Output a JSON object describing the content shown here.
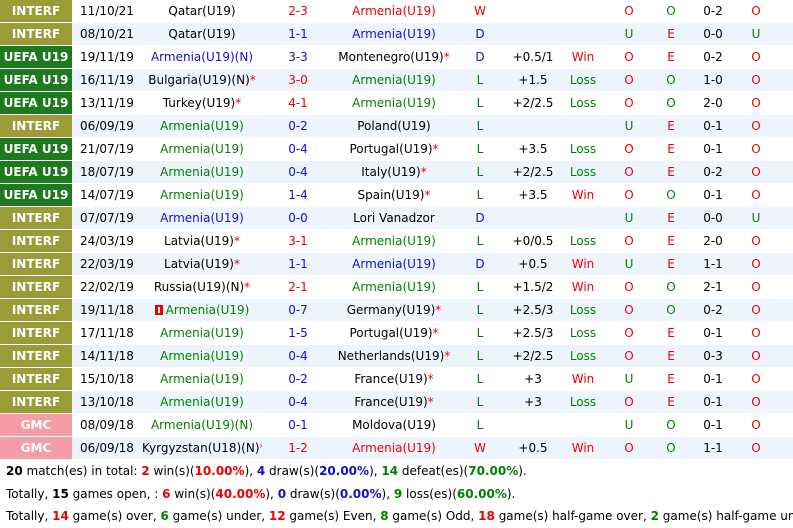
{
  "colors": {
    "interf": "#9b9b37",
    "uefa": "#1e7a1e",
    "gmc": "#f59ca6",
    "row_a": "#eef4fc",
    "row_b": "#ffffff",
    "win": "#e00000",
    "draw": "#1010d0",
    "loss": "#008000"
  },
  "matches": [
    {
      "league": "INTERF",
      "date": "11/10/21",
      "home": "Qatar(U19)",
      "home_color": "black",
      "home_flag": "",
      "score": "2-3",
      "score_color": "red",
      "away": "Armenia(U19)",
      "away_color": "red",
      "result": "W",
      "result_color": "red",
      "handicap": "",
      "hres": "",
      "hres_color": "",
      "c1": "O",
      "c1_color": "red",
      "c2": "O",
      "c2_color": "green",
      "ht": "0-2",
      "c3": "O",
      "c3_color": "red"
    },
    {
      "league": "INTERF",
      "date": "08/10/21",
      "home": "Qatar(U19)",
      "home_color": "black",
      "home_flag": "",
      "score": "1-1",
      "score_color": "blue",
      "away": "Armenia(U19)",
      "away_color": "blue",
      "result": "D",
      "result_color": "blue",
      "handicap": "",
      "hres": "",
      "hres_color": "",
      "c1": "U",
      "c1_color": "green",
      "c2": "E",
      "c2_color": "red",
      "ht": "0-0",
      "c3": "U",
      "c3_color": "green"
    },
    {
      "league": "UEFA U19",
      "date": "19/11/19",
      "home": "Armenia(U19)(N)",
      "home_color": "blue",
      "home_flag": "",
      "score": "3-3",
      "score_color": "blue",
      "away": "Montenegro(U19)",
      "away_color": "black",
      "away_ast": "*",
      "result": "D",
      "result_color": "blue",
      "handicap": "+0.5/1",
      "hres": "Win",
      "hres_color": "red",
      "c1": "O",
      "c1_color": "red",
      "c2": "E",
      "c2_color": "red",
      "ht": "0-2",
      "c3": "O",
      "c3_color": "red"
    },
    {
      "league": "UEFA U19",
      "date": "16/11/19",
      "home": "Bulgaria(U19)(N)",
      "home_color": "black",
      "home_ast": "*",
      "home_flag": "",
      "score": "3-0",
      "score_color": "red",
      "away": "Armenia(U19)",
      "away_color": "green",
      "result": "L",
      "result_color": "green",
      "handicap": "+1.5",
      "hres": "Loss",
      "hres_color": "green",
      "c1": "O",
      "c1_color": "red",
      "c2": "O",
      "c2_color": "green",
      "ht": "1-0",
      "c3": "O",
      "c3_color": "red"
    },
    {
      "league": "UEFA U19",
      "date": "13/11/19",
      "home": "Turkey(U19)",
      "home_color": "black",
      "home_ast": "*",
      "home_flag": "",
      "score": "4-1",
      "score_color": "red",
      "away": "Armenia(U19)",
      "away_color": "green",
      "result": "L",
      "result_color": "green",
      "handicap": "+2/2.5",
      "hres": "Loss",
      "hres_color": "green",
      "c1": "O",
      "c1_color": "red",
      "c2": "O",
      "c2_color": "green",
      "ht": "2-0",
      "c3": "O",
      "c3_color": "red"
    },
    {
      "league": "INTERF",
      "date": "06/09/19",
      "home": "Armenia(U19)",
      "home_color": "green",
      "home_flag": "",
      "score": "0-2",
      "score_color": "blue",
      "away": "Poland(U19)",
      "away_color": "black",
      "result": "L",
      "result_color": "green",
      "handicap": "",
      "hres": "",
      "hres_color": "",
      "c1": "U",
      "c1_color": "green",
      "c2": "E",
      "c2_color": "red",
      "ht": "0-1",
      "c3": "O",
      "c3_color": "red"
    },
    {
      "league": "UEFA U19",
      "date": "21/07/19",
      "home": "Armenia(U19)",
      "home_color": "green",
      "home_flag": "",
      "score": "0-4",
      "score_color": "blue",
      "away": "Portugal(U19)",
      "away_color": "black",
      "away_ast": "*",
      "result": "L",
      "result_color": "green",
      "handicap": "+3.5",
      "hres": "Loss",
      "hres_color": "green",
      "c1": "O",
      "c1_color": "red",
      "c2": "E",
      "c2_color": "red",
      "ht": "0-1",
      "c3": "O",
      "c3_color": "red"
    },
    {
      "league": "UEFA U19",
      "date": "18/07/19",
      "home": "Armenia(U19)",
      "home_color": "green",
      "home_flag": "",
      "score": "0-4",
      "score_color": "blue",
      "away": "Italy(U19)",
      "away_color": "black",
      "away_ast": "*",
      "result": "L",
      "result_color": "green",
      "handicap": "+2/2.5",
      "hres": "Loss",
      "hres_color": "green",
      "c1": "O",
      "c1_color": "red",
      "c2": "E",
      "c2_color": "red",
      "ht": "0-2",
      "c3": "O",
      "c3_color": "red"
    },
    {
      "league": "UEFA U19",
      "date": "14/07/19",
      "home": "Armenia(U19)",
      "home_color": "green",
      "home_flag": "",
      "score": "1-4",
      "score_color": "blue",
      "away": "Spain(U19)",
      "away_color": "black",
      "away_ast": "*",
      "result": "L",
      "result_color": "green",
      "handicap": "+3.5",
      "hres": "Win",
      "hres_color": "red",
      "c1": "O",
      "c1_color": "red",
      "c2": "O",
      "c2_color": "green",
      "ht": "0-1",
      "c3": "O",
      "c3_color": "red"
    },
    {
      "league": "INTERF",
      "date": "07/07/19",
      "home": "Armenia(U19)",
      "home_color": "blue",
      "home_flag": "",
      "score": "0-0",
      "score_color": "blue",
      "away": "Lori Vanadzor",
      "away_color": "black",
      "result": "D",
      "result_color": "blue",
      "handicap": "",
      "hres": "",
      "hres_color": "",
      "c1": "U",
      "c1_color": "green",
      "c2": "E",
      "c2_color": "red",
      "ht": "0-0",
      "c3": "U",
      "c3_color": "green"
    },
    {
      "league": "INTERF",
      "date": "24/03/19",
      "home": "Latvia(U19)",
      "home_color": "black",
      "home_ast": "*",
      "home_flag": "",
      "score": "3-1",
      "score_color": "red",
      "away": "Armenia(U19)",
      "away_color": "green",
      "result": "L",
      "result_color": "green",
      "handicap": "+0/0.5",
      "hres": "Loss",
      "hres_color": "green",
      "c1": "O",
      "c1_color": "red",
      "c2": "E",
      "c2_color": "red",
      "ht": "2-0",
      "c3": "O",
      "c3_color": "red"
    },
    {
      "league": "INTERF",
      "date": "22/03/19",
      "home": "Latvia(U19)",
      "home_color": "black",
      "home_ast": "*",
      "home_flag": "",
      "score": "1-1",
      "score_color": "blue",
      "away": "Armenia(U19)",
      "away_color": "blue",
      "result": "D",
      "result_color": "blue",
      "handicap": "+0.5",
      "hres": "Win",
      "hres_color": "red",
      "c1": "U",
      "c1_color": "green",
      "c2": "E",
      "c2_color": "red",
      "ht": "1-1",
      "c3": "O",
      "c3_color": "red"
    },
    {
      "league": "INTERF",
      "date": "22/02/19",
      "home": "Russia(U19)(N)",
      "home_color": "black",
      "home_ast": "*",
      "home_flag": "",
      "score": "2-1",
      "score_color": "red",
      "away": "Armenia(U19)",
      "away_color": "green",
      "result": "L",
      "result_color": "green",
      "handicap": "+1.5/2",
      "hres": "Win",
      "hres_color": "red",
      "c1": "O",
      "c1_color": "red",
      "c2": "O",
      "c2_color": "green",
      "ht": "2-1",
      "c3": "O",
      "c3_color": "red"
    },
    {
      "league": "INTERF",
      "date": "19/11/18",
      "home": "Armenia(U19)",
      "home_color": "green",
      "home_flag": "flag",
      "score": "0-7",
      "score_color": "blue",
      "away": "Germany(U19)",
      "away_color": "black",
      "away_ast": "*",
      "result": "L",
      "result_color": "green",
      "handicap": "+2.5/3",
      "hres": "Loss",
      "hres_color": "green",
      "c1": "O",
      "c1_color": "red",
      "c2": "O",
      "c2_color": "green",
      "ht": "0-2",
      "c3": "O",
      "c3_color": "red"
    },
    {
      "league": "INTERF",
      "date": "17/11/18",
      "home": "Armenia(U19)",
      "home_color": "green",
      "home_flag": "",
      "score": "1-5",
      "score_color": "blue",
      "away": "Portugal(U19)",
      "away_color": "black",
      "away_ast": "*",
      "result": "L",
      "result_color": "green",
      "handicap": "+2.5/3",
      "hres": "Loss",
      "hres_color": "green",
      "c1": "O",
      "c1_color": "red",
      "c2": "E",
      "c2_color": "red",
      "ht": "0-1",
      "c3": "O",
      "c3_color": "red"
    },
    {
      "league": "INTERF",
      "date": "14/11/18",
      "home": "Armenia(U19)",
      "home_color": "green",
      "home_flag": "",
      "score": "0-4",
      "score_color": "blue",
      "away": "Netherlands(U19)",
      "away_color": "black",
      "away_ast": "*",
      "result": "L",
      "result_color": "green",
      "handicap": "+2/2.5",
      "hres": "Loss",
      "hres_color": "green",
      "c1": "O",
      "c1_color": "red",
      "c2": "E",
      "c2_color": "red",
      "ht": "0-3",
      "c3": "O",
      "c3_color": "red"
    },
    {
      "league": "INTERF",
      "date": "15/10/18",
      "home": "Armenia(U19)",
      "home_color": "green",
      "home_flag": "",
      "score": "0-2",
      "score_color": "blue",
      "away": "France(U19)",
      "away_color": "black",
      "away_ast": "*",
      "result": "L",
      "result_color": "green",
      "handicap": "+3",
      "hres": "Win",
      "hres_color": "red",
      "c1": "U",
      "c1_color": "green",
      "c2": "E",
      "c2_color": "red",
      "ht": "0-1",
      "c3": "O",
      "c3_color": "red"
    },
    {
      "league": "INTERF",
      "date": "13/10/18",
      "home": "Armenia(U19)",
      "home_color": "green",
      "home_flag": "",
      "score": "0-4",
      "score_color": "blue",
      "away": "France(U19)",
      "away_color": "black",
      "away_ast": "*",
      "result": "L",
      "result_color": "green",
      "handicap": "+3",
      "hres": "Loss",
      "hres_color": "green",
      "c1": "O",
      "c1_color": "red",
      "c2": "E",
      "c2_color": "red",
      "ht": "0-1",
      "c3": "O",
      "c3_color": "red"
    },
    {
      "league": "GMC",
      "date": "08/09/18",
      "home": "Armenia(U19)(N)",
      "home_color": "green",
      "home_flag": "",
      "score": "0-1",
      "score_color": "blue",
      "away": "Moldova(U19)",
      "away_color": "black",
      "result": "L",
      "result_color": "green",
      "handicap": "",
      "hres": "",
      "hres_color": "",
      "c1": "U",
      "c1_color": "green",
      "c2": "O",
      "c2_color": "green",
      "ht": "0-1",
      "c3": "O",
      "c3_color": "red"
    },
    {
      "league": "GMC",
      "date": "06/09/18",
      "home": "Kyrgyzstan(U18)(N)",
      "home_color": "black",
      "home_ast": "*",
      "home_flag": "",
      "score": "1-2",
      "score_color": "red",
      "away": "Armenia(U19)",
      "away_color": "red",
      "result": "W",
      "result_color": "red",
      "handicap": "+0.5",
      "hres": "Win",
      "hres_color": "red",
      "c1": "O",
      "c1_color": "red",
      "c2": "O",
      "c2_color": "green",
      "ht": "1-1",
      "c3": "O",
      "c3_color": "red"
    }
  ],
  "summary": {
    "line1": [
      {
        "t": "20",
        "c": "black",
        "b": true
      },
      {
        "t": " match(es) in total: ",
        "c": "black"
      },
      {
        "t": "2",
        "c": "red",
        "b": true
      },
      {
        "t": " win(s)(",
        "c": "black"
      },
      {
        "t": "10.00%",
        "c": "red",
        "b": true
      },
      {
        "t": "), ",
        "c": "black"
      },
      {
        "t": "4",
        "c": "blue",
        "b": true
      },
      {
        "t": " draw(s)(",
        "c": "black"
      },
      {
        "t": "20.00%",
        "c": "blue",
        "b": true
      },
      {
        "t": "), ",
        "c": "black"
      },
      {
        "t": "14",
        "c": "green",
        "b": true
      },
      {
        "t": " defeat(es)(",
        "c": "black"
      },
      {
        "t": "70.00%",
        "c": "green",
        "b": true
      },
      {
        "t": ").",
        "c": "black"
      }
    ],
    "line2": [
      {
        "t": "Totally, ",
        "c": "black"
      },
      {
        "t": "15",
        "c": "black",
        "b": true
      },
      {
        "t": " games open, : ",
        "c": "black"
      },
      {
        "t": "6",
        "c": "red",
        "b": true
      },
      {
        "t": " win(s)(",
        "c": "black"
      },
      {
        "t": "40.00%",
        "c": "red",
        "b": true
      },
      {
        "t": "), ",
        "c": "black"
      },
      {
        "t": "0",
        "c": "blue",
        "b": true
      },
      {
        "t": " draw(s)(",
        "c": "black"
      },
      {
        "t": "0.00%",
        "c": "blue",
        "b": true
      },
      {
        "t": "), ",
        "c": "black"
      },
      {
        "t": "9",
        "c": "green",
        "b": true
      },
      {
        "t": " loss(es)(",
        "c": "black"
      },
      {
        "t": "60.00%",
        "c": "green",
        "b": true
      },
      {
        "t": ").",
        "c": "black"
      }
    ],
    "line3": [
      {
        "t": "Totally, ",
        "c": "black"
      },
      {
        "t": "14",
        "c": "red",
        "b": true
      },
      {
        "t": " game(s) over, ",
        "c": "black"
      },
      {
        "t": "6",
        "c": "green",
        "b": true
      },
      {
        "t": " game(s) under, ",
        "c": "black"
      },
      {
        "t": "12",
        "c": "red",
        "b": true
      },
      {
        "t": " game(s) Even, ",
        "c": "black"
      },
      {
        "t": "8",
        "c": "green",
        "b": true
      },
      {
        "t": " game(s) Odd, ",
        "c": "black"
      },
      {
        "t": "18",
        "c": "red",
        "b": true
      },
      {
        "t": " game(s) half-game over, ",
        "c": "black"
      },
      {
        "t": "2",
        "c": "green",
        "b": true
      },
      {
        "t": " game(s) half-game under",
        "c": "black"
      }
    ]
  }
}
